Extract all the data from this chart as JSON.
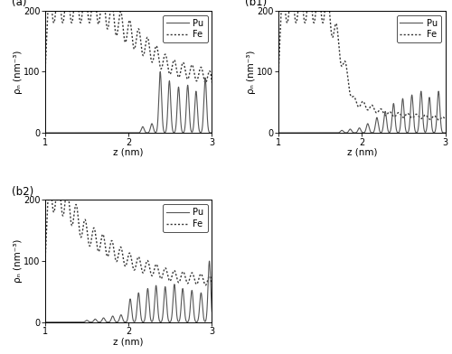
{
  "xlim": [
    1,
    3
  ],
  "ylim": [
    0,
    200
  ],
  "xlabel": "z (nm)",
  "ylabel": "ρₙ (nm⁻³)",
  "yticks": [
    0,
    100,
    200
  ],
  "xticks": [
    1,
    2,
    3
  ],
  "legend_labels": [
    "Pu",
    "Fe"
  ],
  "panel_labels": [
    "(a)",
    "(b1)",
    "(b2)"
  ],
  "background_color": "#ffffff",
  "line_color_pu": "#555555",
  "line_color_fe": "#333333",
  "fig_width": 5.0,
  "fig_height": 3.92,
  "dpi": 100
}
